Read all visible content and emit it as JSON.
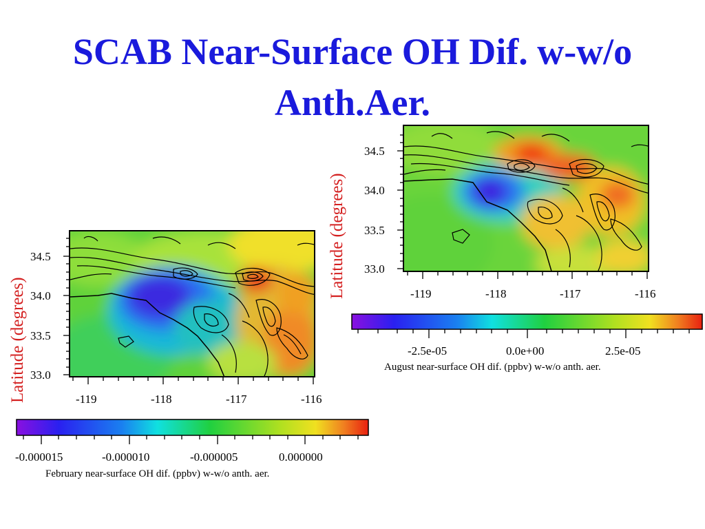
{
  "slide": {
    "title_line1": "SCAB Near-Surface OH Dif. w-w/o",
    "title_line2": "Anth.Aer."
  },
  "chart_data": [
    {
      "type": "heatmap",
      "name": "february",
      "xlabel": "",
      "ylabel": "Latitude (degrees)",
      "x_ticks": [
        "-119",
        "-118",
        "-117",
        "-116"
      ],
      "y_ticks": [
        "33.0",
        "33.5",
        "34.0",
        "34.5"
      ],
      "xlim": [
        -119.2,
        -115.95
      ],
      "ylim": [
        32.97,
        34.83
      ],
      "colorbar": {
        "title": "February near-surface OH dif. (ppbv) w-w/o anth. aer.",
        "tick_labels": [
          "-0.000015",
          "-0.000010",
          "-0.000005",
          "0.000000"
        ],
        "tick_values": [
          -1.5e-05,
          -1e-05,
          -5e-06,
          0.0
        ],
        "range": [
          -1.74e-05,
          3.7e-06
        ]
      },
      "features": [
        {
          "label": "minimum",
          "lon": -118.0,
          "lat": 34.0,
          "value": -1.5e-05
        },
        {
          "label": "maximum",
          "lon": -116.85,
          "lat": 34.3,
          "value": 3e-06
        }
      ]
    },
    {
      "type": "heatmap",
      "name": "august",
      "xlabel": "",
      "ylabel": "Latitude (degrees)",
      "x_ticks": [
        "-119",
        "-118",
        "-117",
        "-116"
      ],
      "y_ticks": [
        "33.0",
        "33.5",
        "34.0",
        "34.5"
      ],
      "xlim": [
        -119.25,
        -115.98
      ],
      "ylim": [
        32.9,
        34.85
      ],
      "colorbar": {
        "title": "August near-surface OH dif. (ppbv) w-w/o anth. aer.",
        "tick_labels": [
          "-2.5e-05",
          "0.0e+00",
          "2.5e-05"
        ],
        "tick_values": [
          -2.5e-05,
          0.0,
          2.5e-05
        ],
        "range": [
          -4.4e-05,
          4.4e-05
        ]
      },
      "features": [
        {
          "label": "minimum",
          "lon": -118.1,
          "lat": 34.0,
          "value": -3.5e-05
        },
        {
          "label": "maximum",
          "lon": -117.7,
          "lat": 34.45,
          "value": 4e-05
        }
      ]
    }
  ],
  "colors": {
    "title": "#1a1adc",
    "axis_label": "#d42020"
  }
}
